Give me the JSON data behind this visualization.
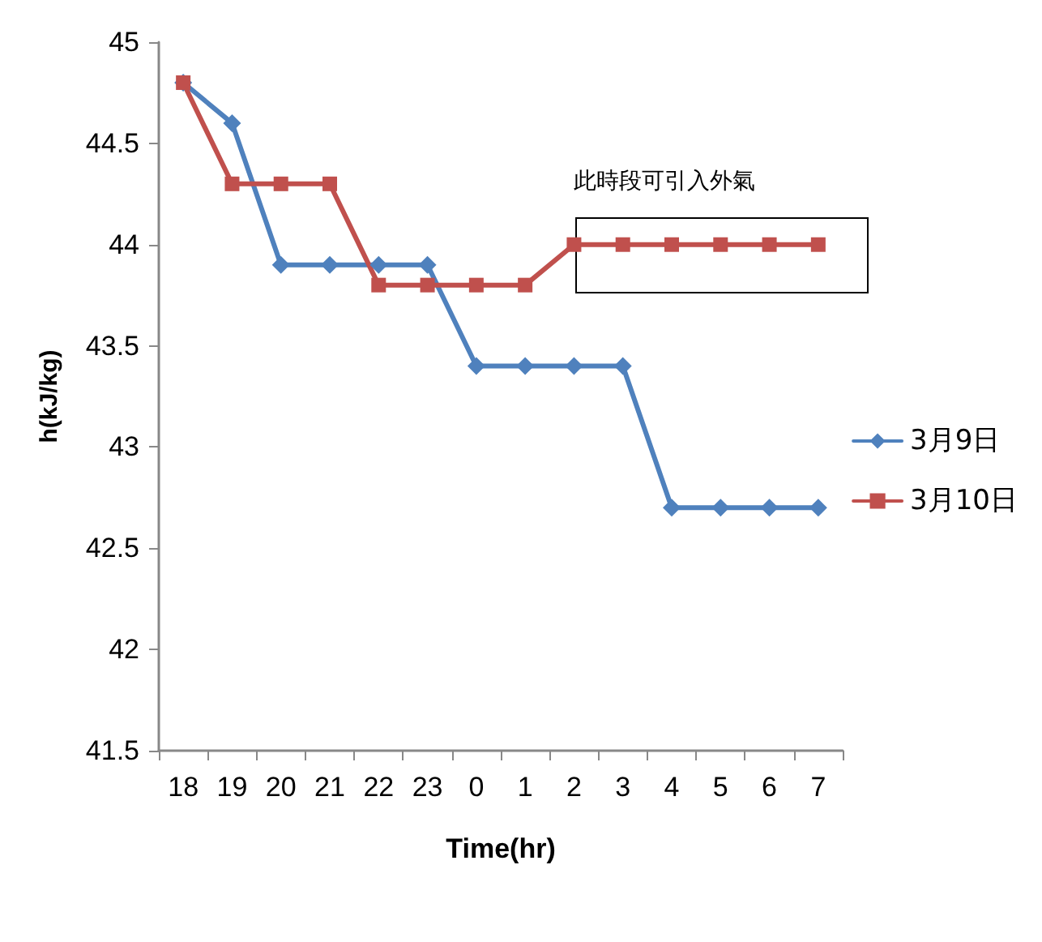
{
  "chart_data": {
    "type": "line",
    "xlabel": "Time(hr)",
    "ylabel": "h(kJ/kg)",
    "categories": [
      "18",
      "19",
      "20",
      "21",
      "22",
      "23",
      "0",
      "1",
      "2",
      "3",
      "4",
      "5",
      "6",
      "7"
    ],
    "series": [
      {
        "name": "3月9日",
        "color": "#4f81bd",
        "marker": "diamond",
        "values": [
          44.8,
          44.6,
          43.9,
          43.9,
          43.9,
          43.9,
          43.4,
          43.4,
          43.4,
          43.4,
          42.7,
          42.7,
          42.7,
          42.7
        ]
      },
      {
        "name": "3月10日",
        "color": "#c0504d",
        "marker": "square",
        "values": [
          44.8,
          44.3,
          44.3,
          44.3,
          43.8,
          43.8,
          43.8,
          43.8,
          44.0,
          44.0,
          44.0,
          44.0,
          44.0,
          44.0
        ]
      }
    ],
    "ylim": [
      41.5,
      45
    ],
    "yticks": [
      41.5,
      42,
      42.5,
      43,
      43.5,
      44,
      44.5,
      45
    ],
    "grid": false,
    "legend": "right",
    "line_style": "solid",
    "annotations": [
      "此時段可引入外氣"
    ]
  }
}
